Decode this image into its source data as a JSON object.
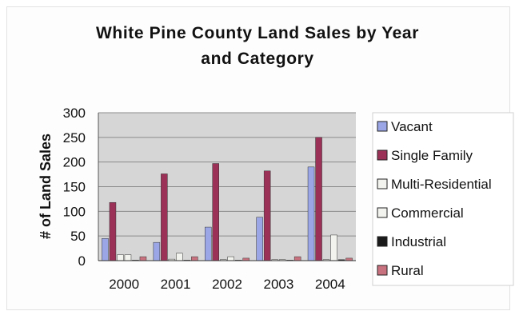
{
  "chart_data": {
    "type": "bar",
    "title": [
      "White Pine County Land Sales by Year",
      "and Category"
    ],
    "xlabel": "",
    "ylabel": "# of Land Sales",
    "categories": [
      "2000",
      "2001",
      "2002",
      "2003",
      "2004"
    ],
    "ylim": [
      0,
      300
    ],
    "yticks": [
      0,
      50,
      100,
      150,
      200,
      250,
      300
    ],
    "grid": true,
    "legend_position": "right",
    "series": [
      {
        "name": "Vacant",
        "color": "#9aa6e6",
        "values": [
          45,
          37,
          68,
          88,
          190
        ]
      },
      {
        "name": "Single Family",
        "color": "#9c3158",
        "values": [
          118,
          176,
          197,
          182,
          250
        ]
      },
      {
        "name": "Multi-Residential",
        "color": "#f2f2ee",
        "values": [
          12,
          3,
          2,
          2,
          2
        ]
      },
      {
        "name": "Commercial",
        "color": "#f2f2ee",
        "values": [
          12,
          15,
          8,
          2,
          52
        ]
      },
      {
        "name": "Industrial",
        "color": "#1a1a1a",
        "values": [
          1,
          1,
          1,
          1,
          2
        ]
      },
      {
        "name": "Rural",
        "color": "#c9727f",
        "values": [
          8,
          8,
          5,
          8,
          5
        ]
      }
    ]
  }
}
